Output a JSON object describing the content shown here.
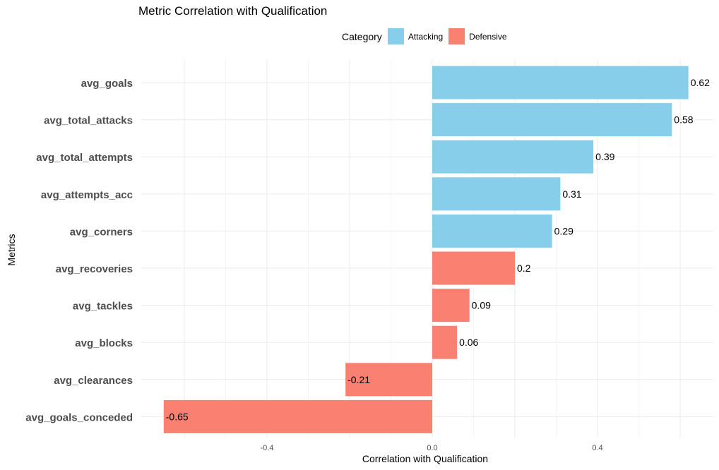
{
  "chart_data": {
    "type": "bar",
    "orientation": "horizontal",
    "title": "Metric Correlation with Qualification",
    "xlabel": "Correlation with Qualification",
    "ylabel": "Metrics",
    "xlim": [
      -0.65,
      0.62
    ],
    "xticks": [
      "-0.4",
      "0.0",
      "0.4"
    ],
    "xtick_values": [
      -0.4,
      0.0,
      0.4
    ],
    "grid": true,
    "legend": {
      "title": "Category",
      "placement": "top",
      "entries": [
        {
          "name": "Attacking",
          "color": "#87CEEB"
        },
        {
          "name": "Defensive",
          "color": "#FA8072"
        }
      ]
    },
    "bars": [
      {
        "metric": "avg_goals",
        "value": 0.62,
        "label": "0.62",
        "category": "Attacking"
      },
      {
        "metric": "avg_total_attacks",
        "value": 0.58,
        "label": "0.58",
        "category": "Attacking"
      },
      {
        "metric": "avg_total_attempts",
        "value": 0.39,
        "label": "0.39",
        "category": "Attacking"
      },
      {
        "metric": "avg_attempts_acc",
        "value": 0.31,
        "label": "0.31",
        "category": "Attacking"
      },
      {
        "metric": "avg_corners",
        "value": 0.29,
        "label": "0.29",
        "category": "Attacking"
      },
      {
        "metric": "avg_recoveries",
        "value": 0.2,
        "label": "0.2",
        "category": "Defensive"
      },
      {
        "metric": "avg_tackles",
        "value": 0.09,
        "label": "0.09",
        "category": "Defensive"
      },
      {
        "metric": "avg_blocks",
        "value": 0.06,
        "label": "0.06",
        "category": "Defensive"
      },
      {
        "metric": "avg_clearances",
        "value": -0.21,
        "label": "-0.21",
        "category": "Defensive"
      },
      {
        "metric": "avg_goals_conceded",
        "value": -0.65,
        "label": "-0.65",
        "category": "Defensive"
      }
    ]
  }
}
